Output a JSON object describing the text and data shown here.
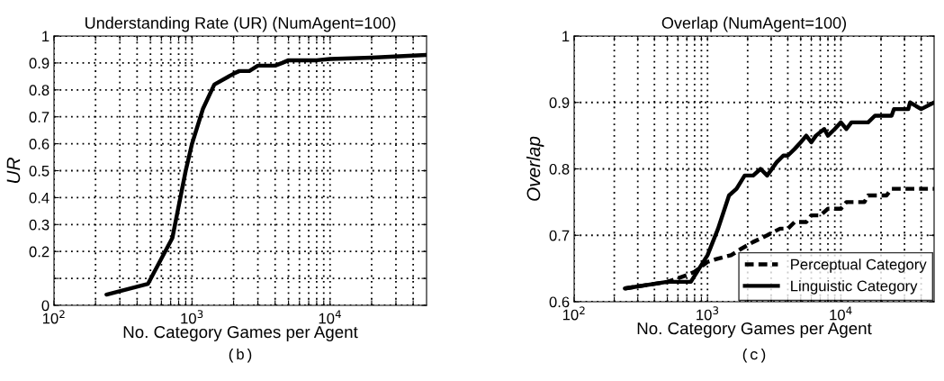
{
  "chart_data": [
    {
      "type": "line",
      "title": "Understanding Rate (UR) (NumAgent=100)",
      "xlabel": "No. Category Games per Agent",
      "ylabel": "UR",
      "log": "x",
      "grid": true,
      "legend": false,
      "marker": "none",
      "line_style": "solid",
      "xlim": [
        100,
        50000
      ],
      "ylim": [
        0,
        1
      ],
      "xticks": [
        {
          "value": 100,
          "label": "10$^{2}$"
        },
        {
          "value": 200,
          "label": null
        },
        {
          "value": 300,
          "label": null
        },
        {
          "value": 400,
          "label": null
        },
        {
          "value": 500,
          "label": null
        },
        {
          "value": 600,
          "label": null
        },
        {
          "value": 700,
          "label": null
        },
        {
          "value": 800,
          "label": null
        },
        {
          "value": 900,
          "label": null
        },
        {
          "value": 1000,
          "label": "10$^{3}$"
        },
        {
          "value": 2000,
          "label": null
        },
        {
          "value": 3000,
          "label": null
        },
        {
          "value": 4000,
          "label": null
        },
        {
          "value": 5000,
          "label": null
        },
        {
          "value": 6000,
          "label": null
        },
        {
          "value": 7000,
          "label": null
        },
        {
          "value": 8000,
          "label": null
        },
        {
          "value": 9000,
          "label": null
        },
        {
          "value": 10000,
          "label": "10$^{4}$"
        },
        {
          "value": 20000,
          "label": null
        },
        {
          "value": 30000,
          "label": null
        },
        {
          "value": 40000,
          "label": null
        }
      ],
      "yticks": [
        0,
        {
          "value": 0.1,
          "label": null
        },
        0.2,
        0.3,
        0.4,
        0.5,
        0.6,
        0.7,
        0.8,
        0.9,
        1
      ],
      "x": [
        240,
        480,
        720,
        900,
        1000,
        1200,
        1450,
        2000,
        2200,
        2600,
        3000,
        4000,
        4500,
        5000,
        8000,
        10000,
        20000,
        50000
      ],
      "series": [
        {
          "color": "#000000",
          "values": [
            0.04,
            0.08,
            0.25,
            0.5,
            0.6,
            0.73,
            0.82,
            0.86,
            0.87,
            0.87,
            0.89,
            0.89,
            0.9,
            0.91,
            0.91,
            0.915,
            0.92,
            0.93
          ]
        }
      ],
      "annotations": [
        "(b)"
      ]
    },
    {
      "type": "line",
      "title": "Overlap (NumAgent=100)",
      "xlabel": "No. Category Games per Agent",
      "ylabel": "Overlap",
      "log": "x",
      "grid": true,
      "legend": "bottom right",
      "marker": "none",
      "xlim": [
        100,
        50000
      ],
      "ylim": [
        0.6,
        1
      ],
      "xticks": [
        {
          "value": 100,
          "label": "10$^{2}$"
        },
        {
          "value": 200,
          "label": null
        },
        {
          "value": 300,
          "label": null
        },
        {
          "value": 400,
          "label": null
        },
        {
          "value": 500,
          "label": null
        },
        {
          "value": 600,
          "label": null
        },
        {
          "value": 700,
          "label": null
        },
        {
          "value": 800,
          "label": null
        },
        {
          "value": 900,
          "label": null
        },
        {
          "value": 1000,
          "label": "10$^{3}$"
        },
        {
          "value": 2000,
          "label": null
        },
        {
          "value": 3000,
          "label": null
        },
        {
          "value": 4000,
          "label": null
        },
        {
          "value": 5000,
          "label": null
        },
        {
          "value": 6000,
          "label": null
        },
        {
          "value": 7000,
          "label": null
        },
        {
          "value": 8000,
          "label": null
        },
        {
          "value": 9000,
          "label": null
        },
        {
          "value": 10000,
          "label": "10$^{4}$"
        },
        {
          "value": 20000,
          "label": null
        },
        {
          "value": 30000,
          "label": null
        },
        {
          "value": 40000,
          "label": null
        }
      ],
      "yticks": [
        0.6,
        0.7,
        0.8,
        0.9,
        1
      ],
      "series": [
        {
          "name": "Perceptual Category",
          "color": "#000000",
          "line_style": "dashed",
          "x": [
            240,
            500,
            700,
            800,
            1000,
            1200,
            1500,
            1800,
            2200,
            2800,
            3500,
            4000,
            4500,
            5500,
            6000,
            7000,
            8000,
            10000,
            11000,
            15000,
            16000,
            22000,
            24000,
            50000
          ],
          "values": [
            0.62,
            0.63,
            0.64,
            0.645,
            0.66,
            0.665,
            0.67,
            0.68,
            0.69,
            0.7,
            0.71,
            0.71,
            0.72,
            0.72,
            0.73,
            0.73,
            0.74,
            0.74,
            0.75,
            0.75,
            0.76,
            0.76,
            0.77,
            0.77
          ]
        },
        {
          "name": "Linguistic Category",
          "color": "#000000",
          "line_style": "solid",
          "x": [
            240,
            500,
            750,
            1000,
            1200,
            1450,
            1650,
            1900,
            2200,
            2500,
            2800,
            3300,
            3700,
            4000,
            4500,
            5000,
            5500,
            6000,
            6500,
            7500,
            8000,
            9000,
            10000,
            11000,
            12000,
            16000,
            18000,
            24000,
            25000,
            32000,
            33000,
            40000,
            50000
          ],
          "values": [
            0.62,
            0.63,
            0.63,
            0.67,
            0.71,
            0.76,
            0.77,
            0.79,
            0.79,
            0.8,
            0.79,
            0.81,
            0.82,
            0.82,
            0.83,
            0.84,
            0.85,
            0.84,
            0.85,
            0.86,
            0.85,
            0.86,
            0.87,
            0.86,
            0.87,
            0.87,
            0.88,
            0.88,
            0.89,
            0.89,
            0.9,
            0.89,
            0.9
          ]
        }
      ],
      "annotations": [
        "(c)"
      ]
    }
  ]
}
